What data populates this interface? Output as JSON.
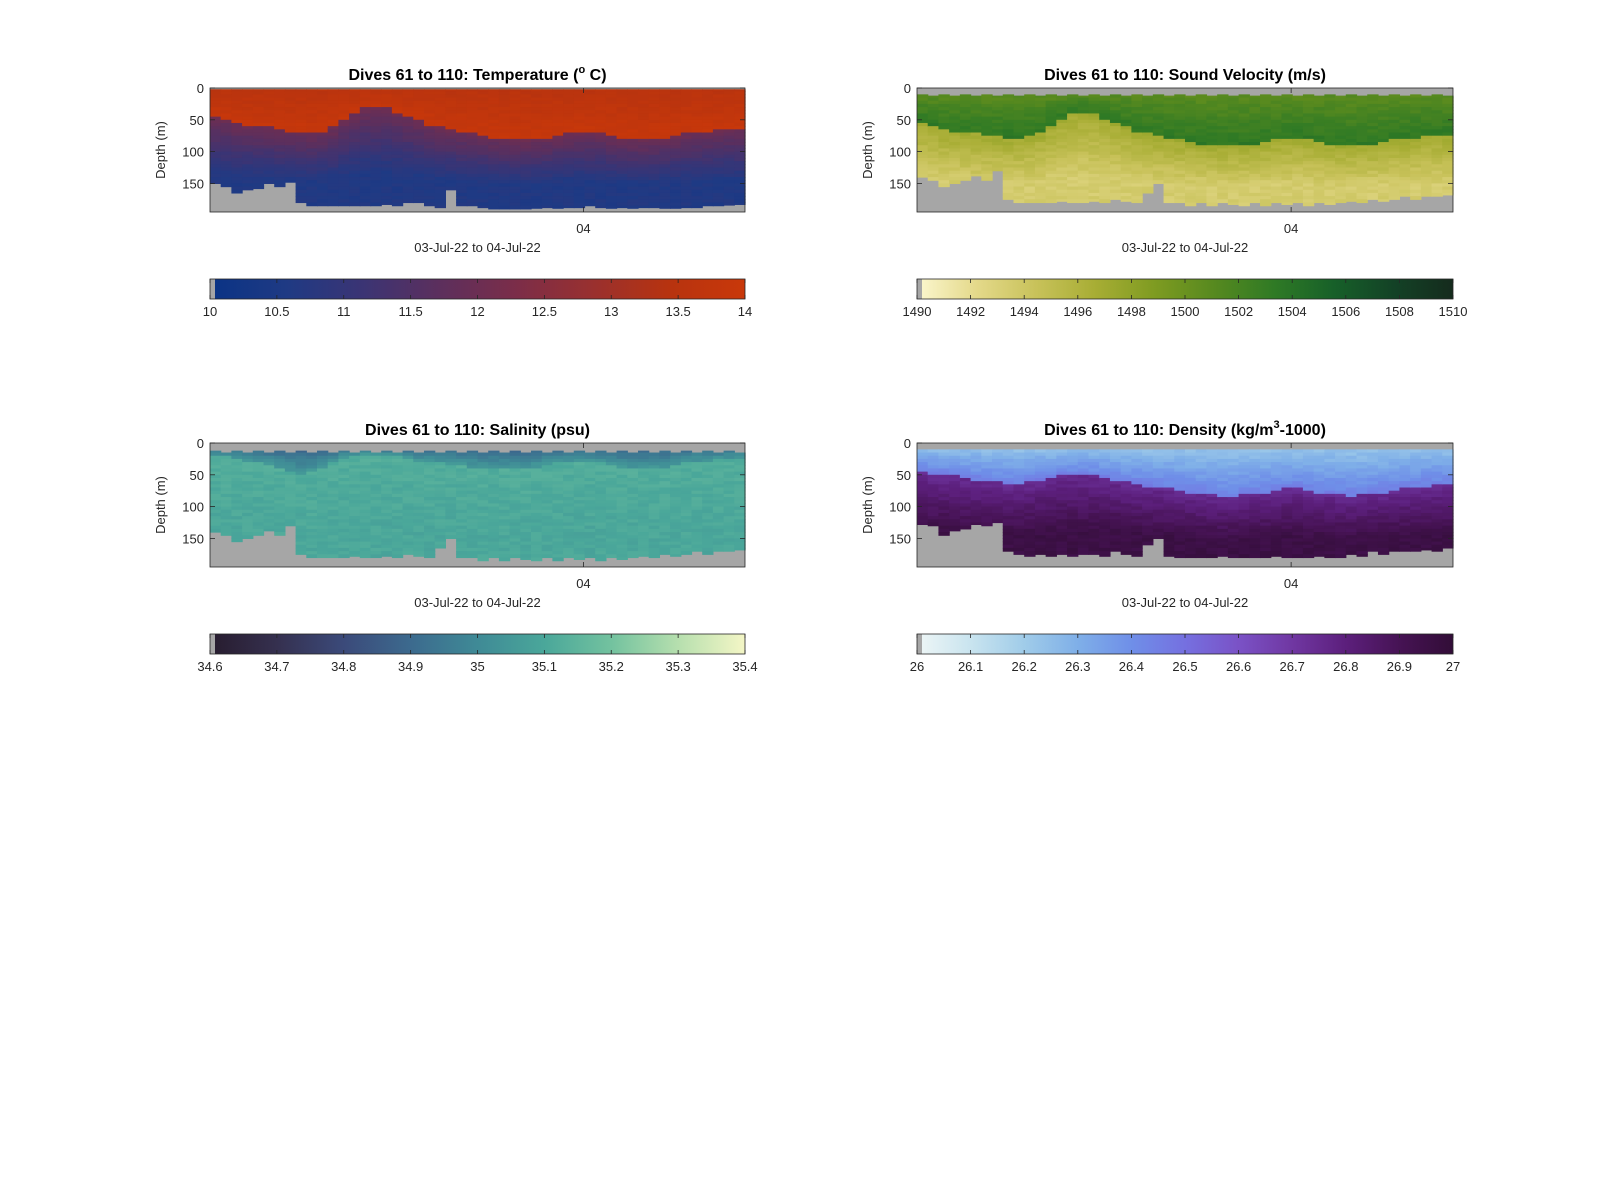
{
  "chart_data": [
    {
      "type": "heatmap",
      "title_parts": [
        "Dives 61 to 110: Temperature (",
        "o",
        " C)"
      ],
      "title_sup_index": 1,
      "ylabel": "Depth (m)",
      "xlabel": "03-Jul-22 to 04-Jul-22",
      "x_tick_labels": [
        "04"
      ],
      "y_tick_labels": [
        "0",
        "50",
        "100",
        "150"
      ],
      "y_ticks": [
        0,
        50,
        100,
        150
      ],
      "ylim": [
        0,
        195
      ],
      "y_reversed": true,
      "colorbar": {
        "min": 10,
        "max": 14,
        "tick_labels": [
          "10",
          "10.5",
          "11",
          "11.5",
          "12",
          "12.5",
          "13",
          "13.5",
          "14"
        ],
        "colors": [
          "#0a3385",
          "#1f3a84",
          "#3b3474",
          "#5c2f5d",
          "#7b2d49",
          "#99302f",
          "#b7330f",
          "#c9380a"
        ]
      },
      "nodata_color": "#a6a6a6",
      "dives": 50,
      "bottom_depth_m": [
        150,
        155,
        165,
        160,
        158,
        150,
        155,
        148,
        182,
        185,
        186,
        186,
        186,
        186,
        186,
        185,
        183,
        185,
        180,
        182,
        186,
        188,
        160,
        186,
        185,
        188,
        190,
        191,
        191,
        190,
        189,
        188,
        189,
        188,
        188,
        187,
        188,
        189,
        188,
        189,
        188,
        188,
        189,
        189,
        188,
        188,
        186,
        185,
        184,
        183
      ],
      "surface_gap_m": [
        2,
        2,
        2,
        2,
        2,
        2,
        2,
        2,
        2,
        2,
        2,
        2,
        2,
        2,
        2,
        2,
        2,
        2,
        2,
        2,
        2,
        2,
        2,
        2,
        2,
        2,
        2,
        2,
        2,
        2,
        2,
        2,
        2,
        2,
        2,
        2,
        2,
        2,
        2,
        2,
        2,
        2,
        2,
        2,
        2,
        2,
        2,
        2,
        2,
        2
      ],
      "layers": [
        {
          "from_depth": 0,
          "value_top": 13.5,
          "value_bottom": 13.9
        },
        {
          "from_depth": 70,
          "value_top": 12.0,
          "value_bottom": 10.6
        },
        {
          "from_depth": 195,
          "value_top": 10.2,
          "value_bottom": 10.2
        }
      ],
      "thermocline_depth_m": [
        45,
        50,
        55,
        58,
        60,
        62,
        65,
        68,
        70,
        70,
        68,
        62,
        50,
        40,
        32,
        30,
        32,
        38,
        45,
        52,
        58,
        62,
        65,
        68,
        72,
        75,
        78,
        80,
        82,
        82,
        80,
        78,
        75,
        72,
        70,
        70,
        72,
        75,
        78,
        80,
        82,
        80,
        78,
        75,
        72,
        70,
        68,
        66,
        65,
        65
      ]
    },
    {
      "type": "heatmap",
      "title_parts": [
        "Dives 61 to 110: Sound Velocity (m/s)"
      ],
      "title_sup_index": -1,
      "ylabel": "Depth (m)",
      "xlabel": "03-Jul-22 to 04-Jul-22",
      "x_tick_labels": [
        "04"
      ],
      "y_tick_labels": [
        "0",
        "50",
        "100",
        "150"
      ],
      "y_ticks": [
        0,
        50,
        100,
        150
      ],
      "ylim": [
        0,
        195
      ],
      "y_reversed": true,
      "colorbar": {
        "min": 1490,
        "max": 1510,
        "tick_labels": [
          "1490",
          "1492",
          "1494",
          "1496",
          "1498",
          "1500",
          "1502",
          "1504",
          "1506",
          "1508",
          "1510"
        ],
        "colors": [
          "#fbf7cf",
          "#e4d98a",
          "#c8c25a",
          "#a7ad34",
          "#7e9b21",
          "#56891f",
          "#2f7a25",
          "#176029",
          "#134226",
          "#152b1d"
        ]
      },
      "nodata_color": "#a6a6a6",
      "dives": 50,
      "bottom_depth_m": [
        140,
        145,
        155,
        150,
        145,
        138,
        145,
        130,
        175,
        180,
        182,
        180,
        182,
        178,
        182,
        180,
        178,
        182,
        175,
        178,
        182,
        165,
        150,
        180,
        182,
        185,
        182,
        185,
        180,
        183,
        185,
        182,
        185,
        180,
        183,
        182,
        185,
        180,
        183,
        182,
        178,
        180,
        175,
        178,
        175,
        172,
        175,
        170,
        172,
        168
      ],
      "surface_gap_m": [
        10,
        12,
        10,
        12,
        10,
        12,
        10,
        12,
        10,
        12,
        10,
        12,
        10,
        12,
        10,
        12,
        10,
        12,
        10,
        12,
        10,
        12,
        10,
        12,
        10,
        12,
        10,
        12,
        10,
        12,
        10,
        12,
        10,
        12,
        10,
        12,
        10,
        12,
        10,
        12,
        10,
        12,
        10,
        12,
        10,
        12,
        10,
        12,
        10,
        12
      ],
      "layers": [
        {
          "from_depth": 0,
          "value_top": 1500.5,
          "value_bottom": 1503.5
        },
        {
          "from_depth": 70,
          "value_top": 1497.0,
          "value_bottom": 1493.5
        },
        {
          "from_depth": 195,
          "value_top": 1493.0,
          "value_bottom": 1493.0
        }
      ],
      "thermocline_depth_m": [
        55,
        60,
        65,
        68,
        70,
        72,
        74,
        76,
        78,
        78,
        76,
        70,
        60,
        50,
        42,
        40,
        42,
        48,
        55,
        62,
        68,
        72,
        75,
        78,
        82,
        85,
        88,
        90,
        92,
        92,
        90,
        88,
        85,
        82,
        80,
        80,
        82,
        85,
        88,
        90,
        92,
        90,
        88,
        85,
        82,
        80,
        78,
        76,
        75,
        75
      ]
    },
    {
      "type": "heatmap",
      "title_parts": [
        "Dives 61 to 110: Salinity (psu)"
      ],
      "title_sup_index": -1,
      "ylabel": "Depth (m)",
      "xlabel": "03-Jul-22 to 04-Jul-22",
      "x_tick_labels": [
        "04"
      ],
      "y_tick_labels": [
        "0",
        "50",
        "100",
        "150"
      ],
      "y_ticks": [
        0,
        50,
        100,
        150
      ],
      "ylim": [
        0,
        195
      ],
      "y_reversed": true,
      "colorbar": {
        "min": 34.6,
        "max": 35.4,
        "tick_labels": [
          "34.6",
          "34.7",
          "34.8",
          "34.9",
          "35",
          "35.1",
          "35.2",
          "35.3",
          "35.4"
        ],
        "colors": [
          "#271c2e",
          "#35304f",
          "#3b4a7a",
          "#3c6a8e",
          "#3f8a96",
          "#4aa79a",
          "#73c29f",
          "#b6dfae",
          "#f4f6c6"
        ]
      },
      "nodata_color": "#a6a6a6",
      "dives": 50,
      "bottom_depth_m": [
        140,
        145,
        155,
        150,
        145,
        138,
        145,
        130,
        175,
        180,
        182,
        180,
        182,
        178,
        182,
        180,
        178,
        182,
        175,
        178,
        182,
        165,
        150,
        180,
        182,
        185,
        182,
        185,
        180,
        183,
        185,
        182,
        185,
        180,
        183,
        182,
        185,
        180,
        183,
        182,
        178,
        180,
        175,
        178,
        175,
        172,
        175,
        170,
        172,
        168
      ],
      "surface_gap_m": [
        12,
        14,
        12,
        14,
        12,
        14,
        12,
        14,
        12,
        14,
        12,
        14,
        12,
        14,
        12,
        14,
        12,
        14,
        12,
        14,
        12,
        14,
        12,
        14,
        12,
        14,
        12,
        14,
        12,
        14,
        12,
        14,
        12,
        14,
        12,
        14,
        12,
        14,
        12,
        14,
        12,
        14,
        12,
        14,
        12,
        14,
        12,
        14,
        12,
        14
      ],
      "layers": [
        {
          "from_depth": 0,
          "value_top": 34.85,
          "value_bottom": 35.05
        },
        {
          "from_depth": 70,
          "value_top": 35.12,
          "value_bottom": 35.1
        },
        {
          "from_depth": 195,
          "value_top": 35.15,
          "value_bottom": 35.15
        }
      ],
      "thermocline_depth_m": [
        20,
        22,
        25,
        28,
        30,
        35,
        40,
        45,
        50,
        45,
        40,
        32,
        25,
        20,
        18,
        18,
        20,
        22,
        25,
        28,
        30,
        32,
        35,
        35,
        38,
        40,
        40,
        42,
        42,
        40,
        38,
        35,
        32,
        30,
        28,
        30,
        32,
        35,
        38,
        40,
        42,
        40,
        38,
        35,
        32,
        30,
        28,
        26,
        25,
        25
      ]
    },
    {
      "type": "heatmap",
      "title_parts": [
        "Dives 61 to 110: Density (kg/m",
        "3",
        "-1000)"
      ],
      "title_sup_index": 1,
      "ylabel": "Depth (m)",
      "xlabel": "03-Jul-22 to 04-Jul-22",
      "x_tick_labels": [
        "04"
      ],
      "y_tick_labels": [
        "0",
        "50",
        "100",
        "150"
      ],
      "y_ticks": [
        0,
        50,
        100,
        150
      ],
      "ylim": [
        0,
        195
      ],
      "y_reversed": true,
      "colorbar": {
        "min": 26,
        "max": 27,
        "tick_labels": [
          "26",
          "26.1",
          "26.2",
          "26.3",
          "26.4",
          "26.5",
          "26.6",
          "26.7",
          "26.8",
          "26.9",
          "27"
        ],
        "colors": [
          "#eef6f6",
          "#c9e4ef",
          "#a0cce9",
          "#7fafe8",
          "#6f8fe8",
          "#7570e0",
          "#7a52c6",
          "#7037a2",
          "#5c1f7c",
          "#461354",
          "#320d37"
        ]
      },
      "nodata_color": "#a6a6a6",
      "dives": 50,
      "bottom_depth_m": [
        128,
        132,
        145,
        138,
        135,
        128,
        132,
        125,
        172,
        175,
        178,
        176,
        178,
        175,
        178,
        176,
        175,
        178,
        172,
        175,
        178,
        160,
        150,
        178,
        180,
        182,
        180,
        182,
        178,
        180,
        182,
        180,
        182,
        178,
        180,
        180,
        182,
        178,
        180,
        180,
        176,
        178,
        172,
        175,
        172,
        170,
        172,
        168,
        170,
        165
      ],
      "surface_gap_m": [
        8,
        10,
        8,
        10,
        8,
        10,
        8,
        10,
        8,
        10,
        8,
        10,
        8,
        10,
        8,
        10,
        8,
        10,
        8,
        10,
        8,
        10,
        8,
        10,
        8,
        10,
        8,
        10,
        8,
        10,
        8,
        10,
        8,
        10,
        8,
        10,
        8,
        10,
        8,
        10,
        8,
        10,
        8,
        10,
        8,
        10,
        8,
        10,
        8,
        10
      ],
      "layers": [
        {
          "from_depth": 0,
          "value_top": 26.2,
          "value_bottom": 26.45
        },
        {
          "from_depth": 70,
          "value_top": 26.75,
          "value_bottom": 26.95
        },
        {
          "from_depth": 195,
          "value_top": 26.98,
          "value_bottom": 26.98
        }
      ],
      "thermocline_depth_m": [
        45,
        48,
        50,
        52,
        55,
        58,
        60,
        62,
        65,
        65,
        62,
        58,
        55,
        52,
        50,
        50,
        52,
        55,
        58,
        62,
        65,
        68,
        70,
        72,
        75,
        78,
        80,
        82,
        85,
        85,
        82,
        80,
        78,
        75,
        72,
        72,
        75,
        78,
        80,
        82,
        85,
        82,
        80,
        78,
        75,
        72,
        70,
        68,
        66,
        65
      ]
    }
  ]
}
